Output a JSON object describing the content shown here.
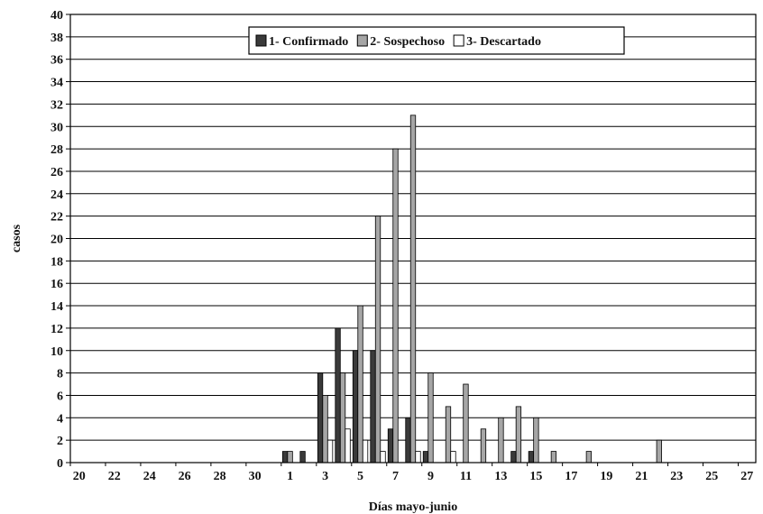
{
  "chart_data": {
    "type": "bar",
    "xlabel": "Días mayo-junio",
    "ylabel": "casos",
    "ylim": [
      0,
      40
    ],
    "ytick_step": 2,
    "grid": true,
    "legend_position": "top-center",
    "categories": [
      "20",
      "21",
      "22",
      "23",
      "24",
      "25",
      "26",
      "27",
      "28",
      "29",
      "30",
      "31",
      "1",
      "2",
      "3",
      "4",
      "5",
      "6",
      "7",
      "8",
      "9",
      "10",
      "11",
      "12",
      "13",
      "14",
      "15",
      "16",
      "17",
      "18",
      "19",
      "20",
      "21",
      "22",
      "23",
      "24",
      "25",
      "26",
      "27"
    ],
    "x_tick_labels": [
      "20",
      "22",
      "24",
      "26",
      "28",
      "30",
      "1",
      "3",
      "5",
      "7",
      "9",
      "11",
      "13",
      "15",
      "17",
      "19",
      "21",
      "23",
      "25",
      "27"
    ],
    "series": [
      {
        "name": "1- Confirmado",
        "color": "#3a3a3a",
        "values": [
          0,
          0,
          0,
          0,
          0,
          0,
          0,
          0,
          0,
          0,
          0,
          0,
          1,
          1,
          8,
          12,
          10,
          10,
          3,
          4,
          1,
          0,
          0,
          0,
          0,
          1,
          1,
          0,
          0,
          0,
          0,
          0,
          0,
          0,
          0,
          0,
          0,
          0,
          0
        ]
      },
      {
        "name": "2- Sospechoso",
        "color": "#a6a6a6",
        "values": [
          0,
          0,
          0,
          0,
          0,
          0,
          0,
          0,
          0,
          0,
          0,
          0,
          1,
          0,
          6,
          8,
          14,
          22,
          28,
          31,
          8,
          5,
          7,
          3,
          4,
          5,
          4,
          1,
          0,
          1,
          0,
          0,
          0,
          2,
          0,
          0,
          0,
          0,
          0
        ]
      },
      {
        "name": "3- Descartado",
        "color": "#ffffff",
        "values": [
          0,
          0,
          0,
          0,
          0,
          0,
          0,
          0,
          0,
          0,
          0,
          0,
          0,
          0,
          2,
          3,
          2,
          1,
          0,
          1,
          0,
          1,
          0,
          0,
          0,
          0,
          0,
          0,
          0,
          0,
          0,
          0,
          0,
          0,
          0,
          0,
          0,
          0,
          0
        ]
      }
    ]
  }
}
